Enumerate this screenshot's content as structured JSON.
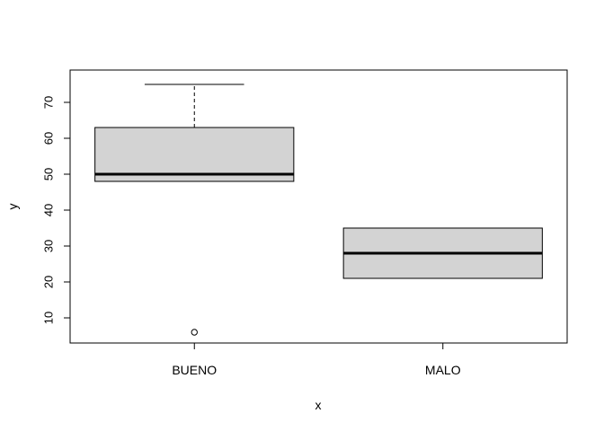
{
  "chart_data": {
    "type": "boxplot",
    "title": "",
    "xlabel": "x",
    "ylabel": "y",
    "ylim": [
      3,
      79
    ],
    "yticks": [
      10,
      20,
      30,
      40,
      50,
      60,
      70
    ],
    "ytick_labels": [
      "10",
      "20",
      "30",
      "40",
      "50",
      "60",
      "70"
    ],
    "grid": false,
    "legend": false,
    "box_fill": "#d3d3d3",
    "line_color": "#000000",
    "categories": [
      "BUENO",
      "MALO"
    ],
    "boxes": [
      {
        "category": "BUENO",
        "whisker_low": 48,
        "q1": 48,
        "median": 50,
        "q3": 63,
        "whisker_high": 75,
        "outliers": [
          6
        ]
      },
      {
        "category": "MALO",
        "whisker_low": 21,
        "q1": 21,
        "median": 28,
        "q3": 35,
        "whisker_high": 35,
        "outliers": []
      }
    ]
  }
}
